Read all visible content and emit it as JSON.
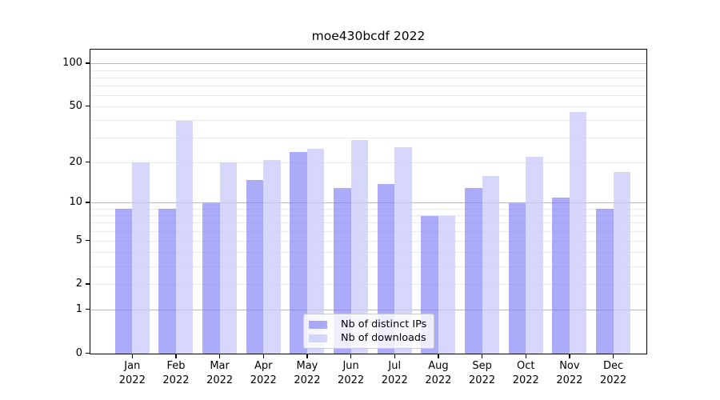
{
  "title": "moe430bcdf 2022",
  "colors": {
    "ips_bar": "rgba(122,122,246,0.63)",
    "downloads_bar": "rgba(199,199,249,0.72)",
    "grid_major": "#b9b9b9",
    "grid_minor": "#e9e9e9",
    "spine": "#000000",
    "legend_border": "#cccccc"
  },
  "legend": {
    "items": [
      {
        "label": "Nb of distinct IPs",
        "series": "ips"
      },
      {
        "label": "Nb of downloads",
        "series": "downloads"
      }
    ]
  },
  "chart_data": {
    "type": "bar",
    "title": "moe430bcdf 2022",
    "categories": [
      "Jan 2022",
      "Feb 2022",
      "Mar 2022",
      "Apr 2022",
      "May 2022",
      "Jun 2022",
      "Jul 2022",
      "Aug 2022",
      "Sep 2022",
      "Oct 2022",
      "Nov 2022",
      "Dec 2022"
    ],
    "x_tick_labels": [
      [
        "Jan",
        "2022"
      ],
      [
        "Feb",
        "2022"
      ],
      [
        "Mar",
        "2022"
      ],
      [
        "Apr",
        "2022"
      ],
      [
        "May",
        "2022"
      ],
      [
        "Jun",
        "2022"
      ],
      [
        "Jul",
        "2022"
      ],
      [
        "Aug",
        "2022"
      ],
      [
        "Sep",
        "2022"
      ],
      [
        "Oct",
        "2022"
      ],
      [
        "Nov",
        "2022"
      ],
      [
        "Dec",
        "2022"
      ]
    ],
    "series": [
      {
        "name": "Nb of distinct IPs",
        "key": "ips",
        "values": [
          9,
          9,
          10,
          15,
          24,
          13,
          14,
          8,
          13,
          10,
          11,
          9
        ]
      },
      {
        "name": "Nb of downloads",
        "key": "downloads",
        "values": [
          20,
          40,
          20,
          21,
          25,
          29,
          26,
          8,
          16,
          22,
          46,
          17
        ]
      }
    ],
    "xlabel": "",
    "ylabel": "",
    "yscale": "log(1+y)",
    "ylim": [
      0,
      126
    ],
    "ytick_values": [
      0,
      1,
      2,
      5,
      10,
      20,
      50,
      100
    ],
    "ytick_labels": [
      "0",
      "1",
      "2",
      "5",
      "10",
      "20",
      "50",
      "100"
    ],
    "major_gridlines": [
      1,
      10,
      100
    ],
    "minor_gridlines": [
      2,
      3,
      4,
      5,
      6,
      7,
      8,
      9,
      20,
      30,
      40,
      50,
      60,
      70,
      80,
      90
    ],
    "grid": true,
    "legend_position": "lower center"
  }
}
